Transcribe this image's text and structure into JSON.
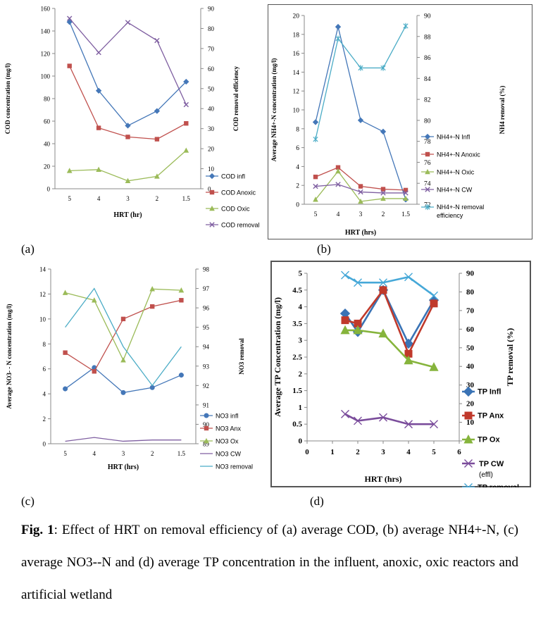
{
  "colors": {
    "blue": "#4477b8",
    "red": "#c0504d",
    "green": "#9bbb59",
    "purple": "#7f5fa1",
    "cyan": "#4bacc6",
    "bold_blue": "#3a73b5",
    "bold_red": "#c0392b",
    "bold_green": "#86b43c",
    "bold_purple": "#7a4c9b",
    "bold_cyan": "#46a8d8"
  },
  "labels": {
    "a": "(a)",
    "b": "(b)",
    "c": "(c)",
    "d": "(d)"
  },
  "caption": {
    "bold": "Fig. 1",
    "text": ": Effect of HRT on removal efficiency of  (a) average COD,  (b) average NH4+-N,   (c) average NO3--N and (d) average TP concentration in the influent, anoxic, oxic reactors and artificial wetland"
  },
  "chart_data": [
    {
      "id": "a",
      "type": "line",
      "categories": [
        "5",
        "4",
        "3",
        "2",
        "1.5"
      ],
      "xlabel": "HRT (hr)",
      "ylabel": "COD concentration (mg/l)",
      "y2label": "COD removal efficiency",
      "ylim": [
        0,
        160
      ],
      "yticks": [
        0,
        20,
        40,
        60,
        80,
        100,
        120,
        140,
        160
      ],
      "y2lim": [
        0,
        90
      ],
      "y2ticks": [
        0,
        10,
        20,
        30,
        40,
        50,
        60,
        70,
        80,
        90
      ],
      "legend": "right",
      "series": [
        {
          "name": "COD infl",
          "values": [
            148,
            87,
            56,
            69,
            95
          ],
          "axis": "left",
          "color": "blue",
          "marker": "diamond"
        },
        {
          "name": "COD Anoxic",
          "values": [
            109,
            54,
            46,
            44,
            58
          ],
          "axis": "left",
          "color": "red",
          "marker": "square"
        },
        {
          "name": "COD Oxic",
          "values": [
            16,
            17,
            7,
            11,
            34
          ],
          "axis": "left",
          "color": "green",
          "marker": "triangle"
        },
        {
          "name": "COD removal",
          "values": [
            85,
            68,
            83,
            74,
            42
          ],
          "axis": "right",
          "color": "purple",
          "marker": "x"
        }
      ]
    },
    {
      "id": "b",
      "type": "line",
      "categories": [
        "5",
        "4",
        "3",
        "2",
        "1.5"
      ],
      "xlabel": "HRT (hrs)",
      "ylabel": "Average NH4+-N concentration (mg/l)",
      "y2label": "NH4 removal (%)",
      "ylim": [
        0,
        20
      ],
      "yticks": [
        0,
        2,
        4,
        6,
        8,
        10,
        12,
        14,
        16,
        18,
        20
      ],
      "y2lim": [
        72,
        90
      ],
      "y2ticks": [
        72,
        74,
        76,
        78,
        80,
        82,
        84,
        86,
        88,
        90
      ],
      "legend": "right",
      "series": [
        {
          "name": "NH4+-N Infl",
          "values": [
            8.7,
            18.8,
            8.9,
            7.7,
            0.5
          ],
          "axis": "left",
          "color": "blue",
          "marker": "diamond"
        },
        {
          "name": "NH4+-N Anoxic",
          "values": [
            2.9,
            3.9,
            1.9,
            1.6,
            1.5
          ],
          "axis": "left",
          "color": "red",
          "marker": "square"
        },
        {
          "name": "NH4+-N Oxic",
          "values": [
            0.5,
            3.5,
            0.3,
            0.6,
            0.6
          ],
          "axis": "left",
          "color": "green",
          "marker": "triangle"
        },
        {
          "name": "NH4+-N CW",
          "values": [
            1.9,
            2.1,
            1.3,
            1.2,
            1.2
          ],
          "axis": "left",
          "color": "purple",
          "marker": "x"
        },
        {
          "name": "NH4+-N removal efficiency",
          "values": [
            78.2,
            87.8,
            85.0,
            85.0,
            89.0
          ],
          "axis": "right",
          "color": "cyan",
          "marker": "star"
        }
      ]
    },
    {
      "id": "c",
      "type": "line",
      "categories": [
        "5",
        "4",
        "3",
        "2",
        "1.5"
      ],
      "xlabel": "HRT (hrs)",
      "ylabel": "Average NO3- - N concentration (mg/l)",
      "y2label": "NO3 removal",
      "ylim": [
        0,
        14
      ],
      "yticks": [
        0,
        2,
        4,
        6,
        8,
        10,
        12,
        14
      ],
      "y2lim": [
        89,
        98
      ],
      "y2ticks": [
        89,
        90,
        91,
        92,
        93,
        94,
        95,
        96,
        97,
        98
      ],
      "legend": "right",
      "series": [
        {
          "name": "NO3 infl",
          "values": [
            4.4,
            6.1,
            4.1,
            4.5,
            5.5
          ],
          "axis": "left",
          "color": "blue",
          "marker": "circle"
        },
        {
          "name": "NO3 Anx",
          "values": [
            7.3,
            5.8,
            10.0,
            11.0,
            11.5
          ],
          "axis": "left",
          "color": "red",
          "marker": "square"
        },
        {
          "name": "NO3 Ox",
          "values": [
            12.1,
            11.5,
            6.7,
            12.4,
            12.3
          ],
          "axis": "left",
          "color": "green",
          "marker": "triangle"
        },
        {
          "name": "NO3 CW",
          "values": [
            0.2,
            0.5,
            0.2,
            0.3,
            0.3
          ],
          "axis": "left",
          "color": "purple",
          "marker": "none"
        },
        {
          "name": "NO3 removal",
          "values": [
            95.0,
            97.0,
            94.0,
            92.0,
            94.0
          ],
          "axis": "right",
          "color": "cyan",
          "marker": "none"
        }
      ]
    },
    {
      "id": "d",
      "type": "line",
      "x": [
        1.5,
        2,
        3,
        4,
        5
      ],
      "xlim": [
        0,
        6
      ],
      "xticks": [
        0,
        1,
        2,
        3,
        4,
        5,
        6
      ],
      "xlabel": "HRT (hrs)",
      "ylabel": "Average TP Concentration (mg/l)",
      "y2label": "TP removal (%)",
      "ylim": [
        0,
        5
      ],
      "yticks": [
        0,
        0.5,
        1,
        1.5,
        2,
        2.5,
        3,
        3.5,
        4,
        4.5,
        5
      ],
      "y2lim": [
        0,
        90
      ],
      "y2ticks": [
        0,
        10,
        20,
        30,
        40,
        50,
        60,
        70,
        80,
        90
      ],
      "legend": "right",
      "series": [
        {
          "name": "TP Infl",
          "values": [
            3.8,
            3.25,
            4.5,
            2.9,
            4.2
          ],
          "axis": "left",
          "color": "bold_blue",
          "marker": "diamond"
        },
        {
          "name": "TP Anx",
          "values": [
            3.6,
            3.5,
            4.5,
            2.6,
            4.1
          ],
          "axis": "left",
          "color": "bold_red",
          "marker": "square"
        },
        {
          "name": "TP Ox",
          "values": [
            3.3,
            3.3,
            3.2,
            2.4,
            2.2
          ],
          "axis": "left",
          "color": "bold_green",
          "marker": "triangle"
        },
        {
          "name": "TP CW (effl)",
          "values": [
            0.8,
            0.6,
            0.7,
            0.5,
            0.5
          ],
          "axis": "left",
          "color": "bold_purple",
          "marker": "x"
        },
        {
          "name": "TP removal",
          "values": [
            89,
            85,
            85,
            88,
            78
          ],
          "axis": "right",
          "color": "bold_cyan",
          "marker": "x"
        }
      ]
    }
  ]
}
